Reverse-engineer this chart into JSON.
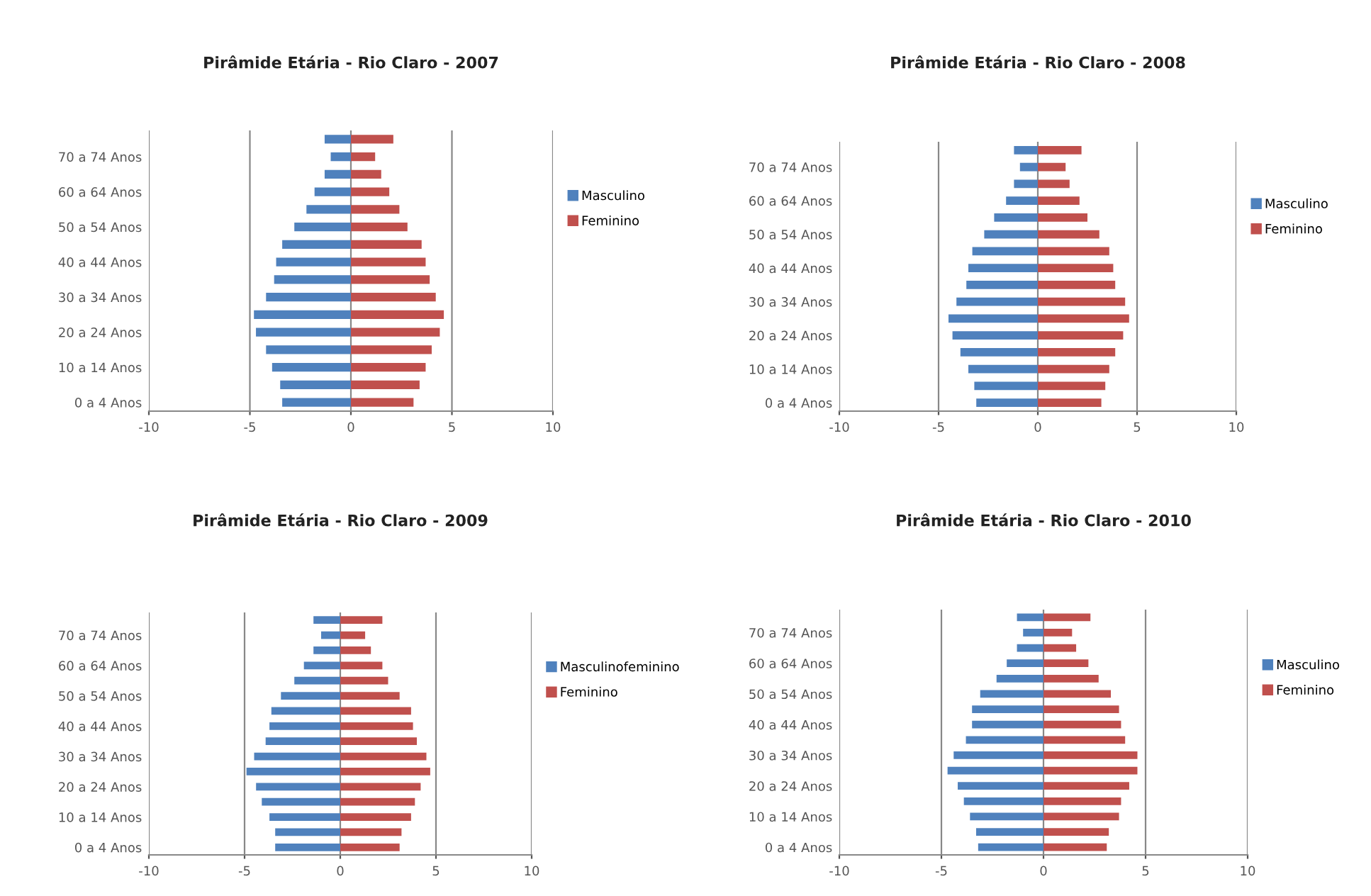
{
  "chart_data": [
    {
      "type": "bar",
      "orientation": "horizontal",
      "stacked": true,
      "title": "Pirâmide Etária - Rio Claro - 2007",
      "categories": [
        null,
        "70 a 74 Anos",
        null,
        "60 a 64 Anos",
        null,
        "50 a 54 Anos",
        null,
        "40 a 44 Anos",
        null,
        "30 a 34 Anos",
        null,
        "20 a 24 Anos",
        null,
        "10 a 14 Anos",
        null,
        "0 a 4 Anos"
      ],
      "series": [
        {
          "name": "Masculino",
          "color": "#4f81bd",
          "values": [
            -1.3,
            -1.0,
            -1.3,
            -1.8,
            -2.2,
            -2.8,
            -3.4,
            -3.7,
            -3.8,
            -4.2,
            -4.8,
            -4.7,
            -4.2,
            -3.9,
            -3.5,
            -3.4
          ]
        },
        {
          "name": "Feminino",
          "color": "#c0504d",
          "values": [
            2.1,
            1.2,
            1.5,
            1.9,
            2.4,
            2.8,
            3.5,
            3.7,
            3.9,
            4.2,
            4.6,
            4.4,
            4.0,
            3.7,
            3.4,
            3.1
          ]
        }
      ],
      "xlim": [
        -10,
        10
      ],
      "xticks": [
        -10,
        -5,
        0,
        5,
        10
      ],
      "grid": "x",
      "legend": "right"
    },
    {
      "type": "bar",
      "orientation": "horizontal",
      "stacked": true,
      "title": "Pirâmide Etária - Rio Claro - 2008",
      "categories": [
        null,
        "70 a 74 Anos",
        null,
        "60 a 64 Anos",
        null,
        "50 a 54 Anos",
        null,
        "40 a 44 Anos",
        null,
        "30 a 34 Anos",
        null,
        "20 a 24 Anos",
        null,
        "10 a 14 Anos",
        null,
        "0 a 4 Anos"
      ],
      "series": [
        {
          "name": "Masculino",
          "color": "#4f81bd",
          "values": [
            -1.2,
            -0.9,
            -1.2,
            -1.6,
            -2.2,
            -2.7,
            -3.3,
            -3.5,
            -3.6,
            -4.1,
            -4.5,
            -4.3,
            -3.9,
            -3.5,
            -3.2,
            -3.1
          ]
        },
        {
          "name": "Feminino",
          "color": "#c0504d",
          "values": [
            2.2,
            1.4,
            1.6,
            2.1,
            2.5,
            3.1,
            3.6,
            3.8,
            3.9,
            4.4,
            4.6,
            4.3,
            3.9,
            3.6,
            3.4,
            3.2
          ]
        }
      ],
      "xlim": [
        -10,
        10
      ],
      "xticks": [
        -10,
        -5,
        0,
        5,
        10
      ],
      "grid": "x",
      "legend": "right"
    },
    {
      "type": "bar",
      "orientation": "horizontal",
      "stacked": true,
      "title": "Pirâmide Etária - Rio Claro - 2009",
      "categories": [
        null,
        "70 a 74 Anos",
        null,
        "60 a 64 Anos",
        null,
        "50 a 54 Anos",
        null,
        "40 a 44 Anos",
        null,
        "30 a 34 Anos",
        null,
        "20 a 24 Anos",
        null,
        "10 a 14 Anos",
        null,
        "0 a 4 Anos"
      ],
      "series": [
        {
          "name": "Masculinofeminino",
          "color": "#4f81bd",
          "values": [
            -1.4,
            -1.0,
            -1.4,
            -1.9,
            -2.4,
            -3.1,
            -3.6,
            -3.7,
            -3.9,
            -4.5,
            -4.9,
            -4.4,
            -4.1,
            -3.7,
            -3.4,
            -3.4
          ]
        },
        {
          "name": "Feminino",
          "color": "#c0504d",
          "values": [
            2.2,
            1.3,
            1.6,
            2.2,
            2.5,
            3.1,
            3.7,
            3.8,
            4.0,
            4.5,
            4.7,
            4.2,
            3.9,
            3.7,
            3.2,
            3.1
          ]
        }
      ],
      "xlim": [
        -10,
        10
      ],
      "xticks": [
        -10,
        -5,
        0,
        5,
        10
      ],
      "grid": "x",
      "legend": "right"
    },
    {
      "type": "bar",
      "orientation": "horizontal",
      "stacked": true,
      "title": "Pirâmide Etária - Rio Claro - 2010",
      "categories": [
        null,
        "70 a 74 Anos",
        null,
        "60 a 64 Anos",
        null,
        "50 a 54 Anos",
        null,
        "40 a 44 Anos",
        null,
        "30 a 34 Anos",
        null,
        "20 a 24 Anos",
        null,
        "10 a 14 Anos",
        null,
        "0 a 4 Anos"
      ],
      "series": [
        {
          "name": "Masculino",
          "color": "#4f81bd",
          "values": [
            -1.3,
            -1.0,
            -1.3,
            -1.8,
            -2.3,
            -3.1,
            -3.5,
            -3.5,
            -3.8,
            -4.4,
            -4.7,
            -4.2,
            -3.9,
            -3.6,
            -3.3,
            -3.2
          ]
        },
        {
          "name": "Feminino",
          "color": "#c0504d",
          "values": [
            2.3,
            1.4,
            1.6,
            2.2,
            2.7,
            3.3,
            3.7,
            3.8,
            4.0,
            4.6,
            4.6,
            4.2,
            3.8,
            3.7,
            3.2,
            3.1
          ]
        }
      ],
      "xlim": [
        -10,
        10
      ],
      "xticks": [
        -10,
        -5,
        0,
        5,
        10
      ],
      "grid": "x",
      "legend": "right"
    }
  ]
}
